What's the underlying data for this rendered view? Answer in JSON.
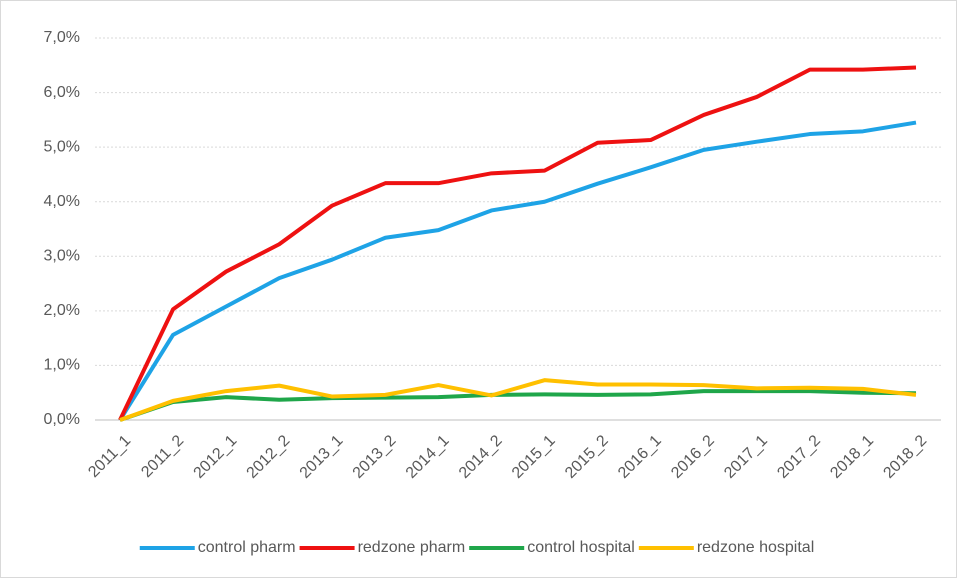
{
  "chart_data": {
    "type": "line",
    "categories": [
      "2011_1",
      "2011_2",
      "2012_1",
      "2012_2",
      "2013_1",
      "2013_2",
      "2014_1",
      "2014_2",
      "2015_1",
      "2015_2",
      "2016_1",
      "2016_2",
      "2017_1",
      "2017_2",
      "2018_1",
      "2018_2"
    ],
    "series": [
      {
        "name": "control pharm",
        "color": "#1ea3e6",
        "values": [
          0,
          1.56,
          2.08,
          2.6,
          2.94,
          3.34,
          3.48,
          3.84,
          4.0,
          4.33,
          4.63,
          4.95,
          5.1,
          5.24,
          5.29,
          5.45
        ]
      },
      {
        "name": "redzone pharm",
        "color": "#ee1111",
        "values": [
          0,
          2.03,
          2.72,
          3.22,
          3.93,
          4.34,
          4.34,
          4.52,
          4.57,
          5.08,
          5.13,
          5.59,
          5.92,
          6.42,
          6.42,
          6.46
        ]
      },
      {
        "name": "control hospital",
        "color": "#1fa64a",
        "values": [
          0,
          0.33,
          0.42,
          0.37,
          0.4,
          0.41,
          0.42,
          0.46,
          0.47,
          0.46,
          0.47,
          0.53,
          0.53,
          0.53,
          0.5,
          0.49
        ]
      },
      {
        "name": "redzone hospital",
        "color": "#ffc000",
        "values": [
          0,
          0.35,
          0.53,
          0.63,
          0.43,
          0.46,
          0.64,
          0.45,
          0.73,
          0.65,
          0.65,
          0.64,
          0.58,
          0.59,
          0.57,
          0.46
        ]
      }
    ],
    "ylim": [
      0,
      7
    ],
    "yticks": [
      {
        "value": 0,
        "label": "0,0%"
      },
      {
        "value": 1,
        "label": "1,0%"
      },
      {
        "value": 2,
        "label": "2,0%"
      },
      {
        "value": 3,
        "label": "3,0%"
      },
      {
        "value": 4,
        "label": "4,0%"
      },
      {
        "value": 5,
        "label": "5,0%"
      },
      {
        "value": 6,
        "label": "6,0%"
      },
      {
        "value": 7,
        "label": "7,0%"
      }
    ],
    "grid": true,
    "legend": "bottom"
  }
}
